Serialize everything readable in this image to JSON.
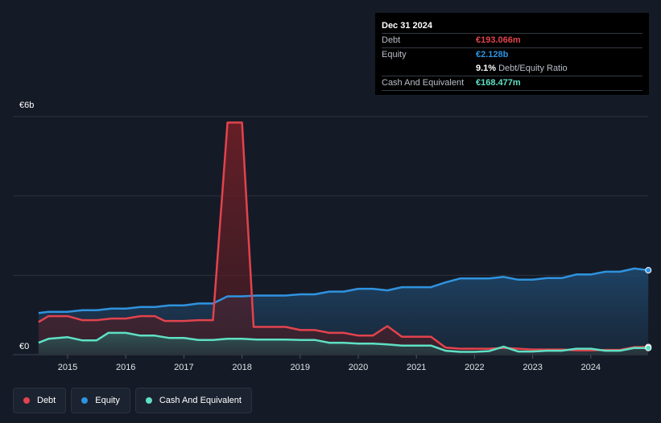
{
  "tooltip": {
    "date": "Dec 31 2024",
    "debt_label": "Debt",
    "debt_value": "€193.066m",
    "equity_label": "Equity",
    "equity_value": "€2.128b",
    "ratio_value": "9.1%",
    "ratio_label": "Debt/Equity Ratio",
    "cash_label": "Cash And Equivalent",
    "cash_value": "€168.477m"
  },
  "y_top_label": "€6b",
  "y_bottom_label": "€0",
  "legend": [
    {
      "label": "Debt",
      "color": "#e2434d"
    },
    {
      "label": "Equity",
      "color": "#2f93e0"
    },
    {
      "label": "Cash And Equivalent",
      "color": "#5fe0c4"
    }
  ],
  "colors": {
    "debt": "#e2434d",
    "equity": "#2f93e0",
    "cash": "#5fe0c4",
    "debt_value_text": "#e2434d",
    "equity_value_text": "#2f93e0",
    "cash_value_text": "#5fe0c4"
  },
  "chart_data": {
    "type": "area",
    "x_ticks": [
      "2015",
      "2016",
      "2017",
      "2018",
      "2019",
      "2020",
      "2021",
      "2022",
      "2023",
      "2024"
    ],
    "ylim": [
      0,
      6
    ],
    "y_unit": "€b",
    "grid": true,
    "legend_position": "bottom-left",
    "series": [
      {
        "name": "Debt",
        "points": [
          [
            2014.5,
            0.82
          ],
          [
            2014.67,
            0.97
          ],
          [
            2015.0,
            0.97
          ],
          [
            2015.25,
            0.87
          ],
          [
            2015.5,
            0.87
          ],
          [
            2015.75,
            0.91
          ],
          [
            2016.0,
            0.91
          ],
          [
            2016.25,
            0.97
          ],
          [
            2016.5,
            0.97
          ],
          [
            2016.67,
            0.85
          ],
          [
            2017.0,
            0.85
          ],
          [
            2017.25,
            0.87
          ],
          [
            2017.5,
            0.87
          ],
          [
            2017.75,
            5.85
          ],
          [
            2018.0,
            5.85
          ],
          [
            2018.2,
            0.7
          ],
          [
            2018.5,
            0.7
          ],
          [
            2018.75,
            0.7
          ],
          [
            2019.0,
            0.62
          ],
          [
            2019.25,
            0.62
          ],
          [
            2019.5,
            0.55
          ],
          [
            2019.75,
            0.55
          ],
          [
            2020.0,
            0.48
          ],
          [
            2020.25,
            0.48
          ],
          [
            2020.5,
            0.72
          ],
          [
            2020.75,
            0.45
          ],
          [
            2021.0,
            0.45
          ],
          [
            2021.25,
            0.45
          ],
          [
            2021.5,
            0.18
          ],
          [
            2021.75,
            0.15
          ],
          [
            2022.0,
            0.15
          ],
          [
            2022.25,
            0.15
          ],
          [
            2022.5,
            0.17
          ],
          [
            2022.75,
            0.15
          ],
          [
            2023.0,
            0.13
          ],
          [
            2023.25,
            0.13
          ],
          [
            2023.5,
            0.13
          ],
          [
            2023.75,
            0.11
          ],
          [
            2024.0,
            0.11
          ],
          [
            2024.25,
            0.12
          ],
          [
            2024.5,
            0.12
          ],
          [
            2024.75,
            0.19
          ],
          [
            2024.99,
            0.193
          ]
        ]
      },
      {
        "name": "Equity",
        "points": [
          [
            2014.5,
            1.05
          ],
          [
            2014.67,
            1.08
          ],
          [
            2015.0,
            1.08
          ],
          [
            2015.25,
            1.12
          ],
          [
            2015.5,
            1.12
          ],
          [
            2015.75,
            1.16
          ],
          [
            2016.0,
            1.16
          ],
          [
            2016.25,
            1.2
          ],
          [
            2016.5,
            1.2
          ],
          [
            2016.75,
            1.24
          ],
          [
            2017.0,
            1.24
          ],
          [
            2017.25,
            1.29
          ],
          [
            2017.5,
            1.29
          ],
          [
            2017.75,
            1.47
          ],
          [
            2018.0,
            1.47
          ],
          [
            2018.25,
            1.49
          ],
          [
            2018.5,
            1.49
          ],
          [
            2018.75,
            1.49
          ],
          [
            2019.0,
            1.52
          ],
          [
            2019.25,
            1.52
          ],
          [
            2019.5,
            1.59
          ],
          [
            2019.75,
            1.59
          ],
          [
            2020.0,
            1.66
          ],
          [
            2020.25,
            1.66
          ],
          [
            2020.5,
            1.62
          ],
          [
            2020.75,
            1.7
          ],
          [
            2021.0,
            1.7
          ],
          [
            2021.25,
            1.7
          ],
          [
            2021.5,
            1.82
          ],
          [
            2021.75,
            1.92
          ],
          [
            2022.0,
            1.92
          ],
          [
            2022.25,
            1.92
          ],
          [
            2022.5,
            1.96
          ],
          [
            2022.75,
            1.89
          ],
          [
            2023.0,
            1.89
          ],
          [
            2023.25,
            1.93
          ],
          [
            2023.5,
            1.93
          ],
          [
            2023.75,
            2.02
          ],
          [
            2024.0,
            2.02
          ],
          [
            2024.25,
            2.09
          ],
          [
            2024.5,
            2.09
          ],
          [
            2024.75,
            2.17
          ],
          [
            2024.99,
            2.128
          ]
        ]
      },
      {
        "name": "Cash And Equivalent",
        "points": [
          [
            2014.5,
            0.3
          ],
          [
            2014.67,
            0.4
          ],
          [
            2015.0,
            0.44
          ],
          [
            2015.25,
            0.36
          ],
          [
            2015.5,
            0.36
          ],
          [
            2015.7,
            0.55
          ],
          [
            2016.0,
            0.55
          ],
          [
            2016.25,
            0.48
          ],
          [
            2016.5,
            0.48
          ],
          [
            2016.75,
            0.42
          ],
          [
            2017.0,
            0.42
          ],
          [
            2017.25,
            0.37
          ],
          [
            2017.5,
            0.37
          ],
          [
            2017.75,
            0.4
          ],
          [
            2018.0,
            0.4
          ],
          [
            2018.25,
            0.38
          ],
          [
            2018.5,
            0.38
          ],
          [
            2018.75,
            0.38
          ],
          [
            2019.0,
            0.37
          ],
          [
            2019.25,
            0.37
          ],
          [
            2019.5,
            0.3
          ],
          [
            2019.75,
            0.3
          ],
          [
            2020.0,
            0.28
          ],
          [
            2020.25,
            0.28
          ],
          [
            2020.5,
            0.26
          ],
          [
            2020.75,
            0.23
          ],
          [
            2021.0,
            0.23
          ],
          [
            2021.25,
            0.23
          ],
          [
            2021.5,
            0.1
          ],
          [
            2021.75,
            0.07
          ],
          [
            2022.0,
            0.07
          ],
          [
            2022.25,
            0.09
          ],
          [
            2022.5,
            0.2
          ],
          [
            2022.75,
            0.08
          ],
          [
            2023.0,
            0.08
          ],
          [
            2023.25,
            0.1
          ],
          [
            2023.5,
            0.1
          ],
          [
            2023.75,
            0.15
          ],
          [
            2024.0,
            0.15
          ],
          [
            2024.25,
            0.1
          ],
          [
            2024.5,
            0.1
          ],
          [
            2024.75,
            0.17
          ],
          [
            2024.99,
            0.168
          ]
        ]
      }
    ]
  }
}
